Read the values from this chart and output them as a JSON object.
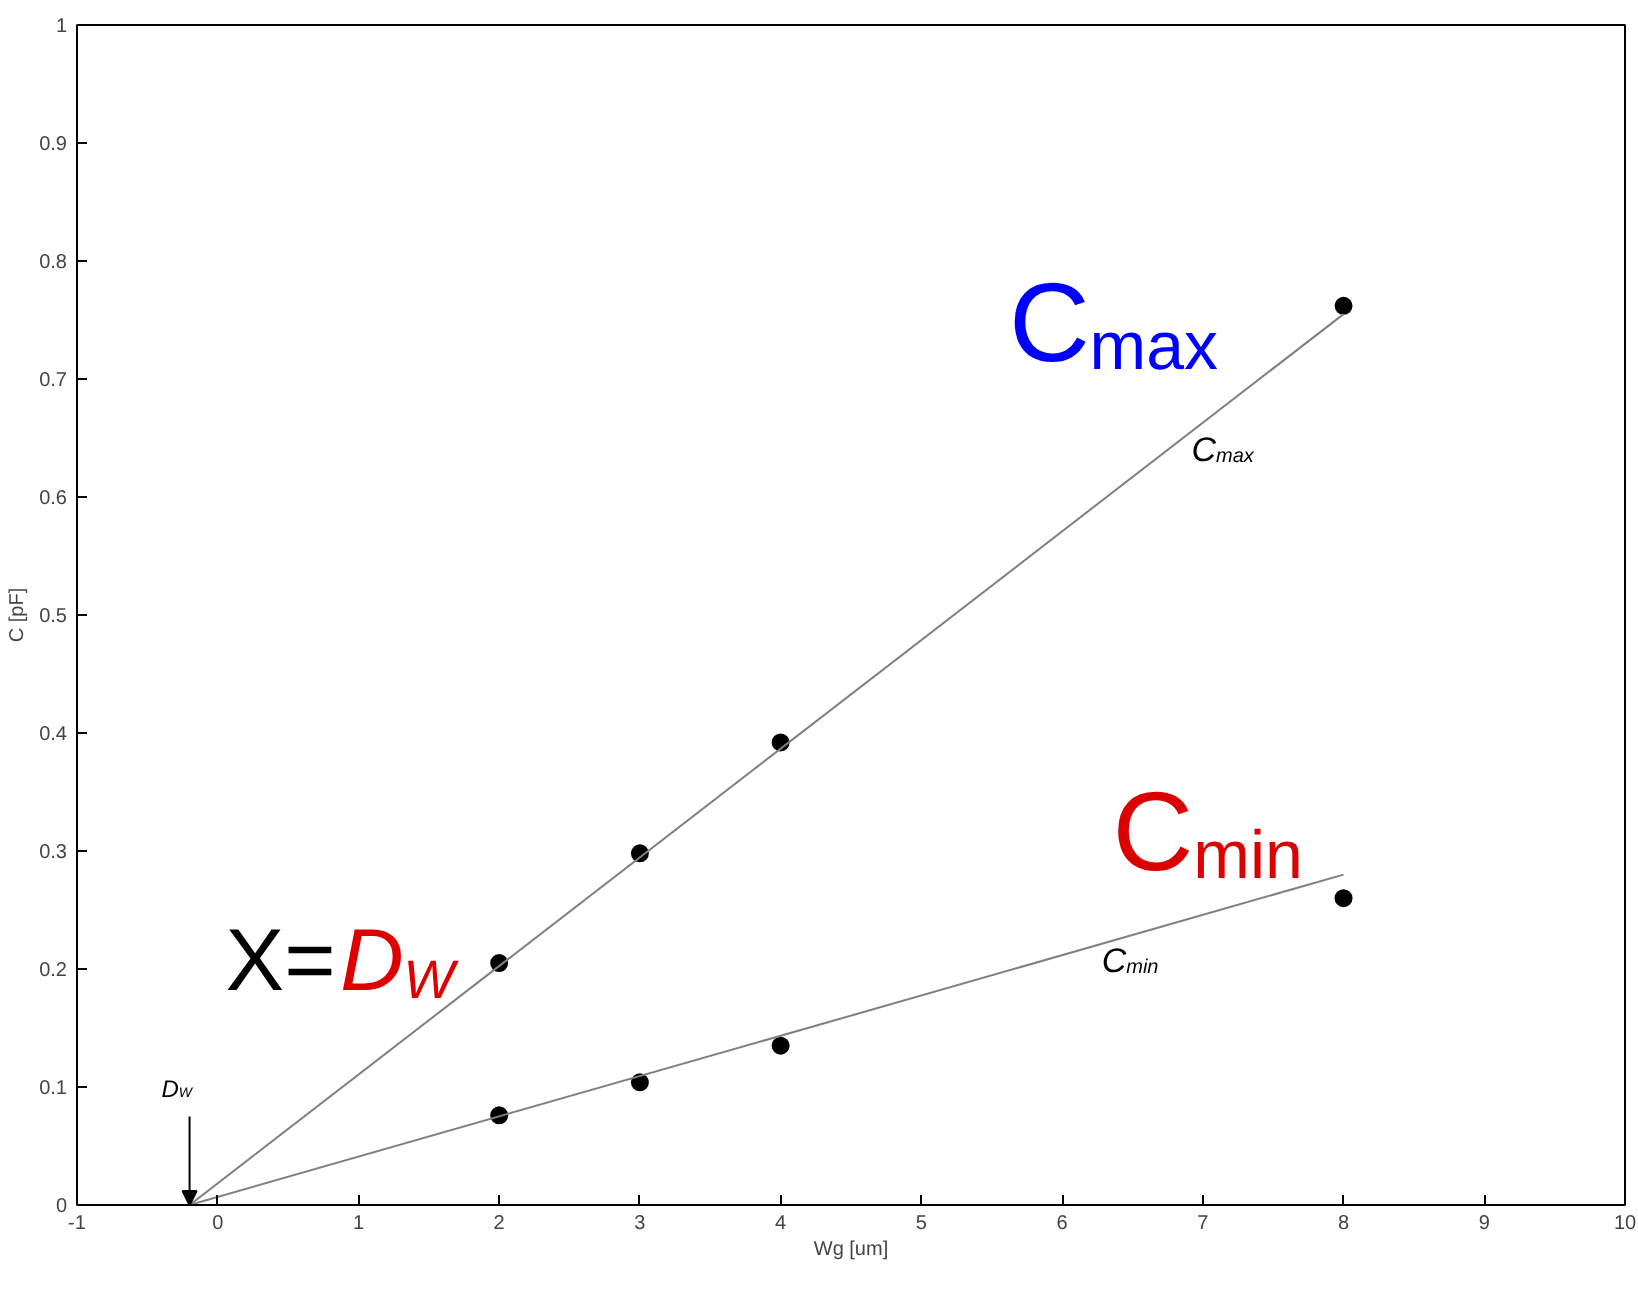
{
  "chart_data": {
    "type": "scatter",
    "xlabel": "Wg [um]",
    "ylabel": "C [pF]",
    "xlim": [
      -1,
      10
    ],
    "ylim": [
      0,
      1
    ],
    "xticks": [
      -1,
      0,
      1,
      2,
      3,
      4,
      5,
      6,
      7,
      8,
      9,
      10
    ],
    "yticks": [
      0,
      0.1,
      0.2,
      0.3,
      0.4,
      0.5,
      0.6,
      0.7,
      0.8,
      0.9,
      1
    ],
    "line_style": "solid",
    "grid": false,
    "series": [
      {
        "marker": "circle",
        "color": "#000000",
        "x": [
          2,
          3,
          4,
          8
        ],
        "values": [
          0.205,
          0.298,
          0.392,
          0.762
        ]
      },
      {
        "marker": "circle",
        "color": "#000000",
        "x": [
          2,
          3,
          4,
          8
        ],
        "values": [
          0.076,
          0.104,
          0.135,
          0.26
        ]
      },
      {
        "type": "line",
        "color": "#7f7f7f",
        "x": [
          -0.2,
          8
        ],
        "values": [
          0,
          0.755
        ]
      },
      {
        "type": "line",
        "color": "#7f7f7f",
        "x": [
          -0.2,
          8
        ],
        "values": [
          0,
          0.28
        ]
      }
    ],
    "annotations": [
      "C$_{max}$",
      "C$_{min}$",
      "X=",
      "D$_{W}$",
      "C$_{max}$",
      "C$_{min}$",
      {
        "text": "D$_{W}$",
        "x": -0.2,
        "y": 0
      }
    ]
  }
}
